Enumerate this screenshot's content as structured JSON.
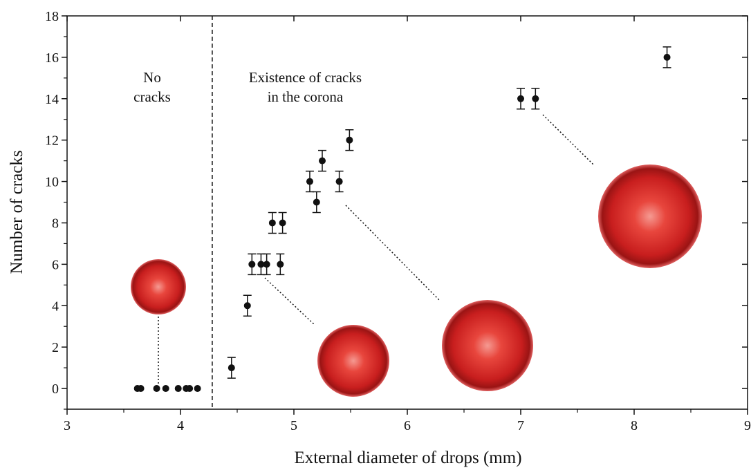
{
  "chart_data": {
    "type": "scatter",
    "xlabel": "External diameter of drops (mm)",
    "ylabel": "Number of cracks",
    "x": [
      3.62,
      3.65,
      3.79,
      3.87,
      3.98,
      4.05,
      4.08,
      4.15,
      4.45,
      4.59,
      4.63,
      4.71,
      4.76,
      4.81,
      4.88,
      4.9,
      5.14,
      5.2,
      5.25,
      5.4,
      5.49,
      7.0,
      7.13,
      8.29
    ],
    "values": [
      0,
      0,
      0,
      0,
      0,
      0,
      0,
      0,
      1,
      4,
      6,
      6,
      6,
      8,
      6,
      8,
      10,
      9,
      11,
      10,
      12,
      14,
      14,
      16
    ],
    "errors": [
      null,
      null,
      null,
      null,
      null,
      null,
      null,
      null,
      0.5,
      0.5,
      0.5,
      0.5,
      0.5,
      0.5,
      0.5,
      0.5,
      0.5,
      0.5,
      0.5,
      0.5,
      0.5,
      0.5,
      0.5,
      0.5
    ],
    "color": "#111111",
    "xlim": [
      3,
      9
    ],
    "ylim": [
      -1,
      18
    ],
    "xticks": [
      3,
      4,
      5,
      6,
      7,
      8,
      9
    ],
    "yticks": [
      0,
      2,
      4,
      6,
      8,
      10,
      12,
      14,
      16,
      18
    ],
    "xminor_ticks": [
      3.5,
      4.5,
      5.5,
      6.5,
      7.5,
      8.5
    ],
    "yminor_ticks": [
      -1,
      1,
      3,
      5,
      7,
      9,
      11,
      13,
      15,
      17
    ],
    "divider_x": 4.28,
    "annotations": [
      {
        "lines": [
          "No",
          "cracks"
        ],
        "x": 3.75,
        "y": 14.8
      },
      {
        "lines": [
          "Existence of cracks",
          "in the corona"
        ],
        "x": 5.1,
        "y": 14.8
      }
    ]
  }
}
